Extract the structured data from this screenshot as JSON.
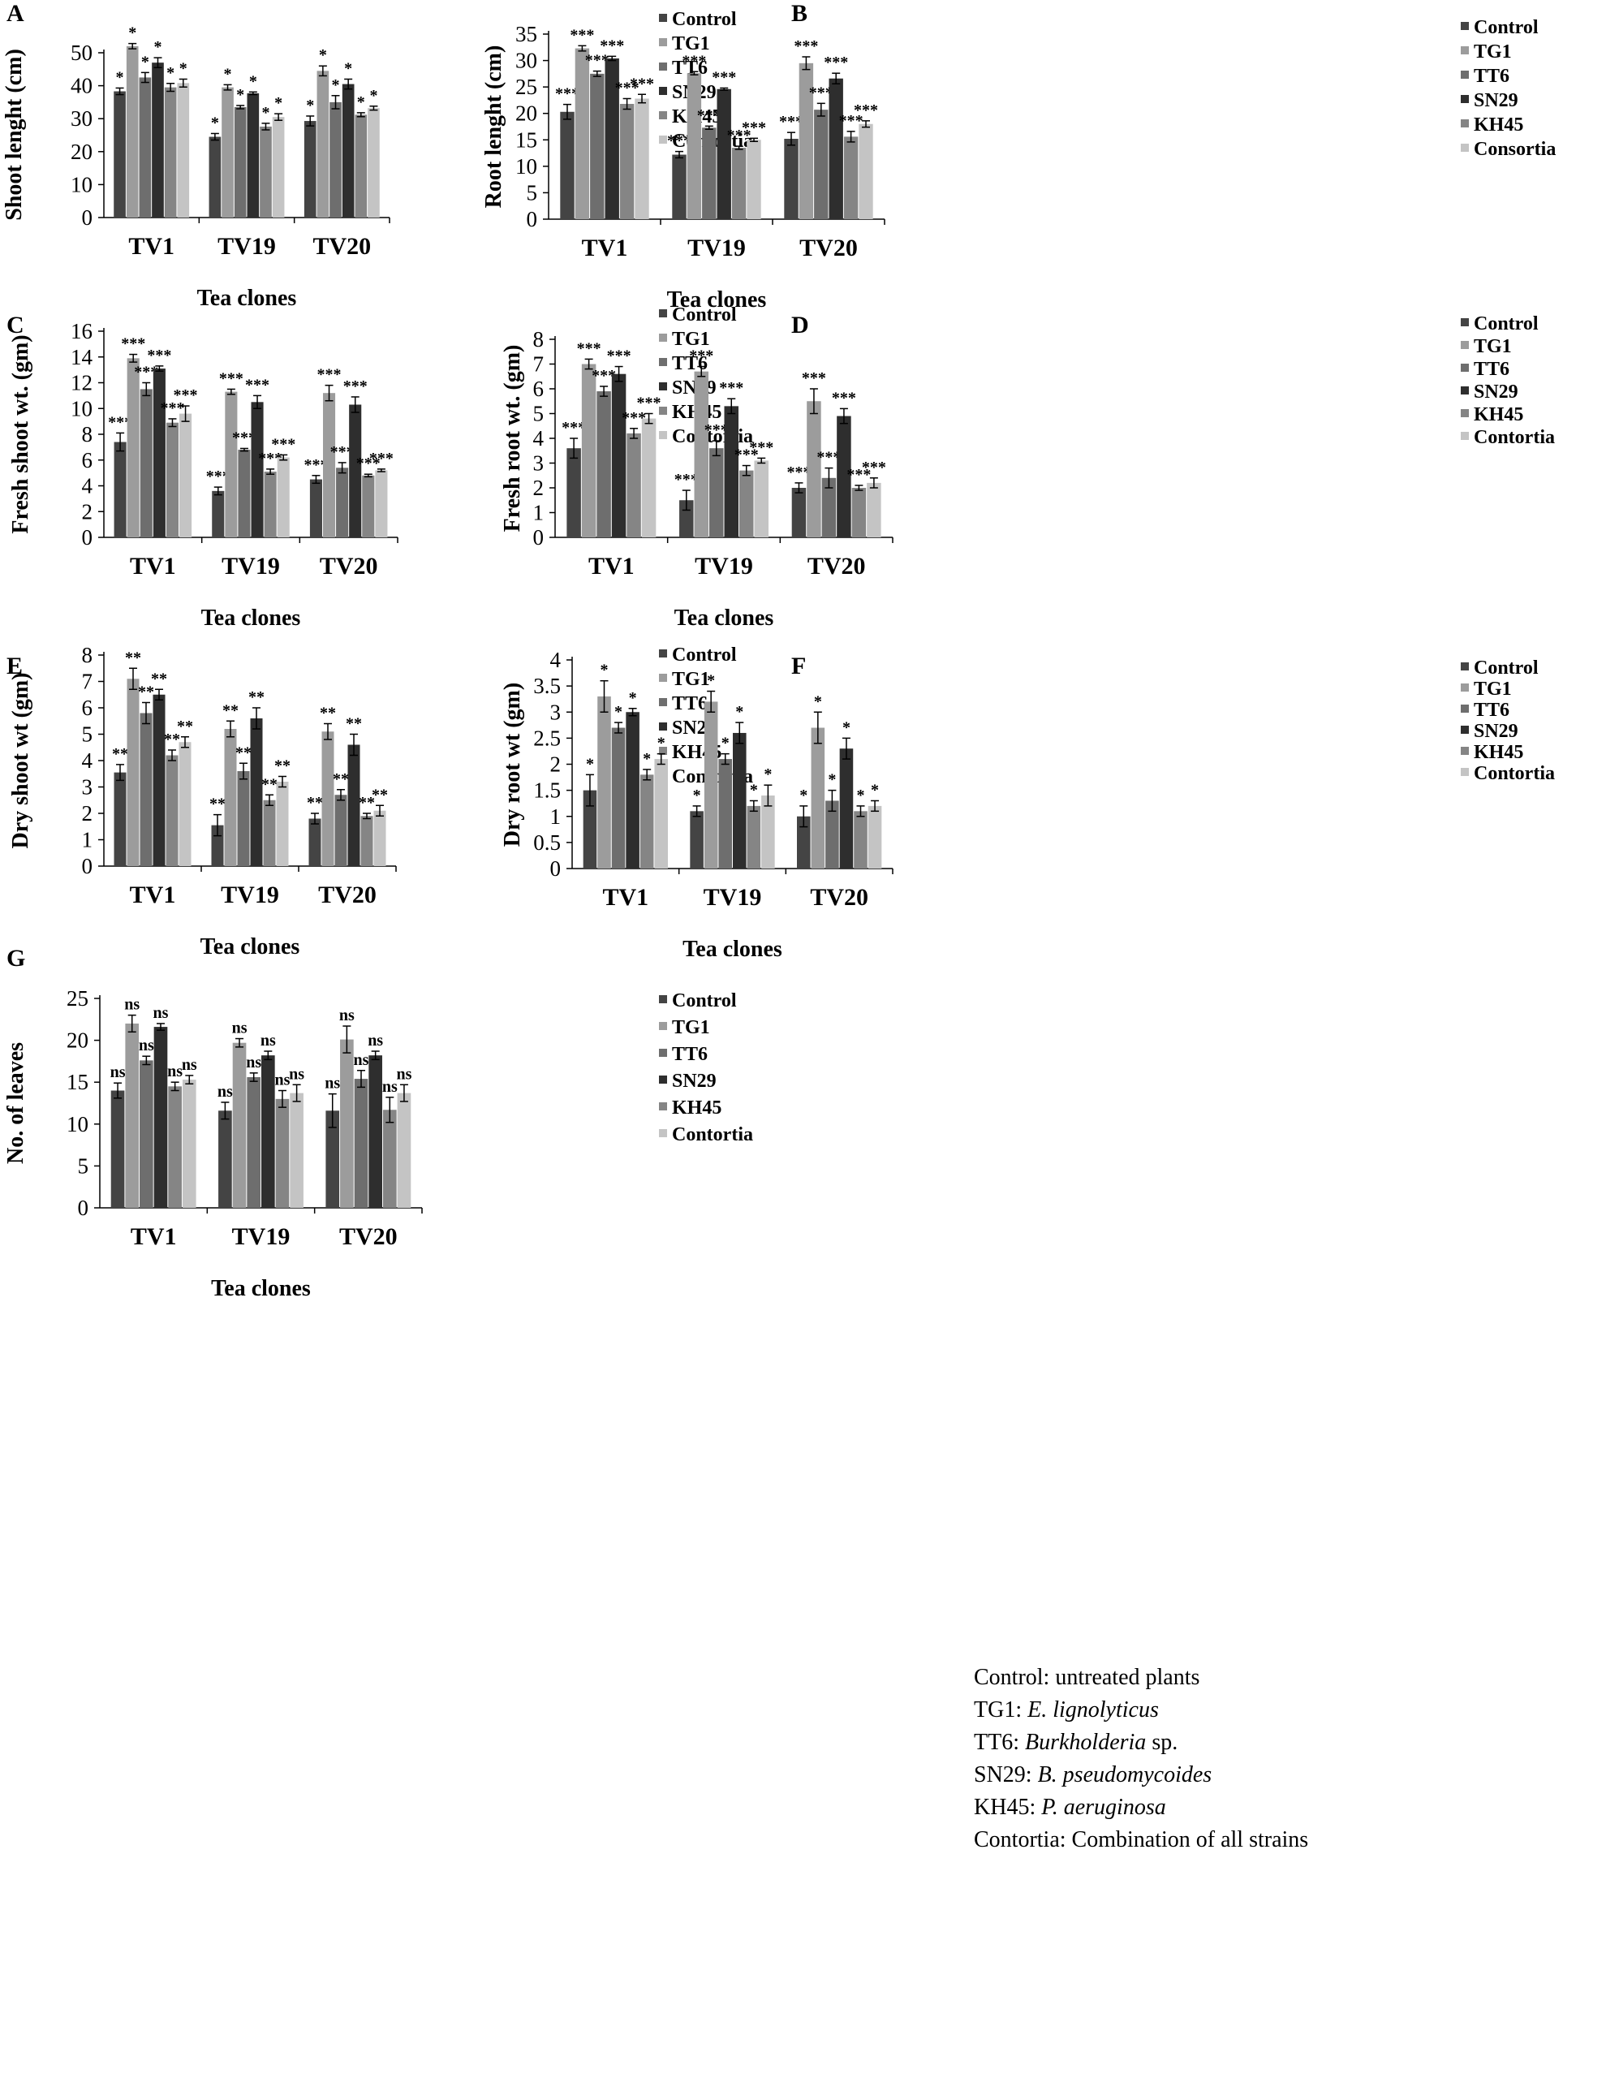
{
  "colors": {
    "Control": "#444444",
    "TG1": "#9c9c9c",
    "TT6": "#6e6e6e",
    "SN29": "#2e2e2e",
    "KH45": "#858585",
    "Contortia": "#c4c4c4",
    "axis": "#000000",
    "error_bar": "#000000"
  },
  "footnote": [
    {
      "plain": "Control: untreated plants",
      "italic": "",
      "tail": ""
    },
    {
      "plain": "TG1: ",
      "italic": "E. lignolyticus",
      "tail": ""
    },
    {
      "plain": "TT6: ",
      "italic": "Burkholderia",
      "tail": " sp."
    },
    {
      "plain": "SN29: ",
      "italic": "B. pseudomycoides",
      "tail": ""
    },
    {
      "plain": "KH45: ",
      "italic": "P. aeruginosa",
      "tail": ""
    },
    {
      "plain": "Contortia: Combination of all strains",
      "italic": "",
      "tail": ""
    }
  ],
  "chart_data": [
    {
      "panel": "A",
      "type": "bar",
      "title": "",
      "xlabel": "Tea clones",
      "ylabel": "Shoot lenght (cm)",
      "categories": [
        "TV1",
        "TV19",
        "TV20"
      ],
      "ylim": [
        0,
        50
      ],
      "yticks": [
        0,
        10,
        20,
        30,
        40,
        50
      ],
      "tick_labels": [
        "0",
        "10",
        "20",
        "30",
        "40",
        "50"
      ],
      "legend_position": "right",
      "series": [
        {
          "name": "Control",
          "values": [
            38.3,
            24.5,
            29.3
          ],
          "errors": [
            1.0,
            1.0,
            1.5
          ],
          "sig": [
            "*",
            "*",
            "*"
          ]
        },
        {
          "name": "TG1",
          "values": [
            52.0,
            39.5,
            44.5
          ],
          "errors": [
            0.8,
            0.8,
            1.5
          ],
          "sig": [
            "*",
            "*",
            "*"
          ]
        },
        {
          "name": "TT6",
          "values": [
            42.5,
            33.5,
            35.0
          ],
          "errors": [
            1.5,
            0.5,
            2.0
          ],
          "sig": [
            "*",
            "*",
            "*"
          ]
        },
        {
          "name": "SN29",
          "values": [
            47.0,
            37.7,
            40.5
          ],
          "errors": [
            1.5,
            0.4,
            1.5
          ],
          "sig": [
            "*",
            "*",
            "*"
          ]
        },
        {
          "name": "KH45",
          "values": [
            39.5,
            27.6,
            31.2
          ],
          "errors": [
            1.2,
            1.0,
            0.6
          ],
          "sig": [
            "*",
            "*",
            "*"
          ]
        },
        {
          "name": "Contortia",
          "values": [
            40.8,
            30.5,
            33.2
          ],
          "errors": [
            1.2,
            1.0,
            0.6
          ],
          "sig": [
            "*",
            "*",
            "*"
          ]
        }
      ],
      "legend_labels": [
        "Control",
        "TG1",
        "TT6",
        "SN29",
        "KH45",
        "Contortia"
      ]
    },
    {
      "panel": "B",
      "type": "bar",
      "title": "",
      "xlabel": "Tea clones",
      "ylabel": "Root lenght (cm)",
      "categories": [
        "TV1",
        "TV19",
        "TV20"
      ],
      "ylim": [
        0,
        35
      ],
      "yticks": [
        0,
        5,
        10,
        15,
        20,
        25,
        30,
        35
      ],
      "tick_labels": [
        "0",
        "5",
        "10",
        "15",
        "20",
        "25",
        "30",
        "35"
      ],
      "legend_position": "right",
      "series": [
        {
          "name": "Control",
          "values": [
            20.3,
            12.2,
            15.2
          ],
          "errors": [
            1.4,
            0.6,
            1.2
          ],
          "sig": [
            "***",
            "***",
            "***"
          ]
        },
        {
          "name": "TG1",
          "values": [
            32.3,
            27.6,
            29.5
          ],
          "errors": [
            0.5,
            0.3,
            1.2
          ],
          "sig": [
            "***",
            "***",
            "***"
          ]
        },
        {
          "name": "TT6",
          "values": [
            27.5,
            17.3,
            20.7
          ],
          "errors": [
            0.5,
            0.3,
            1.2
          ],
          "sig": [
            "***",
            "***",
            "***"
          ]
        },
        {
          "name": "SN29",
          "values": [
            30.4,
            24.6,
            26.6
          ],
          "errors": [
            0.4,
            0.2,
            1.0
          ],
          "sig": [
            "***",
            "***",
            "***"
          ]
        },
        {
          "name": "KH45",
          "values": [
            21.8,
            13.5,
            15.6
          ],
          "errors": [
            1.0,
            0.3,
            1.0
          ],
          "sig": [
            "***",
            "***",
            "***"
          ]
        },
        {
          "name": "Consortia",
          "values": [
            22.8,
            15.0,
            18.0
          ],
          "errors": [
            0.8,
            0.3,
            0.6
          ],
          "sig": [
            "***",
            "***",
            "***"
          ]
        }
      ],
      "legend_labels": [
        "Control",
        "TG1",
        "TT6",
        "SN29",
        "KH45",
        "Consortia"
      ]
    },
    {
      "panel": "C",
      "type": "bar",
      "title": "",
      "xlabel": "Tea clones",
      "ylabel": "Fresh shoot wt. (gm)",
      "categories": [
        "TV1",
        "TV19",
        "TV20"
      ],
      "ylim": [
        0,
        16
      ],
      "yticks": [
        0,
        2,
        4,
        6,
        8,
        10,
        12,
        14,
        16
      ],
      "tick_labels": [
        "0",
        "2",
        "4",
        "6",
        "8",
        "10",
        "12",
        "14",
        "16"
      ],
      "legend_position": "right",
      "series": [
        {
          "name": "Control",
          "values": [
            7.4,
            3.6,
            4.5
          ],
          "errors": [
            0.7,
            0.3,
            0.3
          ],
          "sig": [
            "***",
            "***",
            "***"
          ]
        },
        {
          "name": "TG1",
          "values": [
            13.9,
            11.3,
            11.2
          ],
          "errors": [
            0.3,
            0.2,
            0.6
          ],
          "sig": [
            "***",
            "***",
            "***"
          ]
        },
        {
          "name": "TT6",
          "values": [
            11.5,
            6.8,
            5.4
          ],
          "errors": [
            0.5,
            0.1,
            0.4
          ],
          "sig": [
            "***",
            "***",
            "***"
          ]
        },
        {
          "name": "SN29",
          "values": [
            13.1,
            10.5,
            10.3
          ],
          "errors": [
            0.2,
            0.5,
            0.6
          ],
          "sig": [
            "***",
            "***",
            "***"
          ]
        },
        {
          "name": "KH45",
          "values": [
            8.9,
            5.1,
            4.8
          ],
          "errors": [
            0.3,
            0.2,
            0.1
          ],
          "sig": [
            "***",
            "***",
            "***"
          ]
        },
        {
          "name": "Contortia",
          "values": [
            9.6,
            6.2,
            5.2
          ],
          "errors": [
            0.6,
            0.2,
            0.1
          ],
          "sig": [
            "***",
            "***",
            "***"
          ]
        }
      ],
      "legend_labels": [
        "Control",
        "TG1",
        "TT6",
        "SN29",
        "KH45",
        "Contortia"
      ]
    },
    {
      "panel": "D",
      "type": "bar",
      "title": "",
      "xlabel": "Tea clones",
      "ylabel": "Fresh root wt. (gm)",
      "categories": [
        "TV1",
        "TV19",
        "TV20"
      ],
      "ylim": [
        0,
        8
      ],
      "yticks": [
        0,
        1,
        2,
        3,
        4,
        5,
        6,
        7,
        8
      ],
      "tick_labels": [
        "0",
        "1",
        "2",
        "3",
        "4",
        "5",
        "6",
        "7",
        "8"
      ],
      "legend_position": "right",
      "series": [
        {
          "name": "Control",
          "values": [
            3.6,
            1.5,
            2.0
          ],
          "errors": [
            0.4,
            0.4,
            0.2
          ],
          "sig": [
            "***",
            "***",
            "***"
          ]
        },
        {
          "name": "TG1",
          "values": [
            7.0,
            6.7,
            5.5
          ],
          "errors": [
            0.2,
            0.2,
            0.5
          ],
          "sig": [
            "***",
            "***",
            "***"
          ]
        },
        {
          "name": "TT6",
          "values": [
            5.9,
            3.6,
            2.4
          ],
          "errors": [
            0.2,
            0.3,
            0.4
          ],
          "sig": [
            "***",
            "***",
            "***"
          ]
        },
        {
          "name": "SN29",
          "values": [
            6.6,
            5.3,
            4.9
          ],
          "errors": [
            0.3,
            0.3,
            0.3
          ],
          "sig": [
            "***",
            "***",
            "***"
          ]
        },
        {
          "name": "KH45",
          "values": [
            4.2,
            2.7,
            2.0
          ],
          "errors": [
            0.2,
            0.2,
            0.1
          ],
          "sig": [
            "***",
            "***",
            "***"
          ]
        },
        {
          "name": "Contortia",
          "values": [
            4.8,
            3.1,
            2.2
          ],
          "errors": [
            0.2,
            0.1,
            0.2
          ],
          "sig": [
            "***",
            "***",
            "***"
          ]
        }
      ],
      "legend_labels": [
        "Control",
        "TG1",
        "TT6",
        "SN29",
        "KH45",
        "Contortia"
      ]
    },
    {
      "panel": "E",
      "type": "bar",
      "title": "",
      "xlabel": "Tea clones",
      "ylabel": "Dry  shoot wt (gm)",
      "categories": [
        "TV1",
        "TV19",
        "TV20"
      ],
      "ylim": [
        0,
        8
      ],
      "yticks": [
        0,
        1,
        2,
        3,
        4,
        5,
        6,
        7,
        8
      ],
      "tick_labels": [
        "0",
        "1",
        "2",
        "3",
        "4",
        "5",
        "6",
        "7",
        "8"
      ],
      "legend_position": "right",
      "series": [
        {
          "name": "Control",
          "values": [
            3.55,
            1.55,
            1.8
          ],
          "errors": [
            0.3,
            0.4,
            0.2
          ],
          "sig": [
            "**",
            "**",
            "**"
          ]
        },
        {
          "name": "TG1",
          "values": [
            7.1,
            5.2,
            5.1
          ],
          "errors": [
            0.4,
            0.3,
            0.3
          ],
          "sig": [
            "**",
            "**",
            "**"
          ]
        },
        {
          "name": "TT6",
          "values": [
            5.8,
            3.6,
            2.7
          ],
          "errors": [
            0.4,
            0.3,
            0.2
          ],
          "sig": [
            "**",
            "**",
            "**"
          ]
        },
        {
          "name": "SN29",
          "values": [
            6.5,
            5.6,
            4.6
          ],
          "errors": [
            0.2,
            0.4,
            0.4
          ],
          "sig": [
            "**",
            "**",
            "**"
          ]
        },
        {
          "name": "KH45",
          "values": [
            4.2,
            2.5,
            1.9
          ],
          "errors": [
            0.2,
            0.2,
            0.1
          ],
          "sig": [
            "**",
            "**",
            "**"
          ]
        },
        {
          "name": "Contortia",
          "values": [
            4.7,
            3.2,
            2.1
          ],
          "errors": [
            0.2,
            0.2,
            0.2
          ],
          "sig": [
            "**",
            "**",
            "**"
          ]
        }
      ],
      "legend_labels": [
        "Control",
        "TG1",
        "TT6",
        "SN29",
        "KH45",
        "Contortia"
      ]
    },
    {
      "panel": "F",
      "type": "bar",
      "title": "",
      "xlabel": "Tea clones",
      "ylabel": "Dry root wt (gm)",
      "categories": [
        "TV1",
        "TV19",
        "TV20"
      ],
      "ylim": [
        0,
        4
      ],
      "yticks": [
        0,
        0.5,
        1,
        1.5,
        2,
        2.5,
        3,
        3.5,
        4
      ],
      "tick_labels": [
        "0",
        "0.5",
        "1",
        "1.5",
        "2",
        "2.5",
        "3",
        "3.5",
        "4"
      ],
      "legend_position": "right",
      "series": [
        {
          "name": "Control",
          "values": [
            1.5,
            1.1,
            1.0
          ],
          "errors": [
            0.3,
            0.1,
            0.2
          ],
          "sig": [
            "*",
            "*",
            "*"
          ]
        },
        {
          "name": "TG1",
          "values": [
            3.3,
            3.2,
            2.7
          ],
          "errors": [
            0.3,
            0.2,
            0.3
          ],
          "sig": [
            "*",
            "*",
            "*"
          ]
        },
        {
          "name": "TT6",
          "values": [
            2.7,
            2.1,
            1.3
          ],
          "errors": [
            0.1,
            0.1,
            0.2
          ],
          "sig": [
            "*",
            "*",
            "*"
          ]
        },
        {
          "name": "SN29",
          "values": [
            3.0,
            2.6,
            2.3
          ],
          "errors": [
            0.07,
            0.2,
            0.2
          ],
          "sig": [
            "*",
            "*",
            "*"
          ]
        },
        {
          "name": "KH45",
          "values": [
            1.8,
            1.2,
            1.1
          ],
          "errors": [
            0.1,
            0.1,
            0.1
          ],
          "sig": [
            "*",
            "*",
            "*"
          ]
        },
        {
          "name": "Contortia",
          "values": [
            2.1,
            1.4,
            1.2
          ],
          "errors": [
            0.1,
            0.2,
            0.1
          ],
          "sig": [
            "*",
            "*",
            "*"
          ]
        }
      ],
      "legend_labels": [
        "Control",
        "TG1",
        "TT6",
        "SN29",
        "KH45",
        "Contortia"
      ]
    },
    {
      "panel": "G",
      "type": "bar",
      "title": "",
      "xlabel": "Tea clones",
      "ylabel": "No. of leaves",
      "categories": [
        "TV1",
        "TV19",
        "TV20"
      ],
      "ylim": [
        0,
        25
      ],
      "yticks": [
        0,
        5,
        10,
        15,
        20,
        25
      ],
      "tick_labels": [
        "0",
        "5",
        "10",
        "15",
        "20",
        "25"
      ],
      "legend_position": "right",
      "series": [
        {
          "name": "Control",
          "values": [
            14.0,
            11.6,
            11.6
          ],
          "errors": [
            0.9,
            1.0,
            2.0
          ],
          "sig": [
            "ns",
            "ns",
            "ns"
          ]
        },
        {
          "name": "TG1",
          "values": [
            22.0,
            19.7,
            20.1
          ],
          "errors": [
            1.0,
            0.5,
            1.6
          ],
          "sig": [
            "ns",
            "ns",
            "ns"
          ]
        },
        {
          "name": "TT6",
          "values": [
            17.6,
            15.6,
            15.4
          ],
          "errors": [
            0.5,
            0.5,
            1.0
          ],
          "sig": [
            "ns",
            "ns",
            "ns"
          ]
        },
        {
          "name": "SN29",
          "values": [
            21.6,
            18.2,
            18.2
          ],
          "errors": [
            0.4,
            0.5,
            0.5
          ],
          "sig": [
            "ns",
            "ns",
            "ns"
          ]
        },
        {
          "name": "KH45",
          "values": [
            14.5,
            13.0,
            11.7
          ],
          "errors": [
            0.5,
            1.0,
            1.5
          ],
          "sig": [
            "ns",
            "ns",
            "ns"
          ]
        },
        {
          "name": "Contortia",
          "values": [
            15.3,
            13.7,
            13.7
          ],
          "errors": [
            0.5,
            1.0,
            1.0
          ],
          "sig": [
            "ns",
            "ns",
            "ns"
          ]
        }
      ],
      "legend_labels": [
        "Control",
        "TG1",
        "TT6",
        "SN29",
        "KH45",
        "Contortia"
      ]
    }
  ]
}
